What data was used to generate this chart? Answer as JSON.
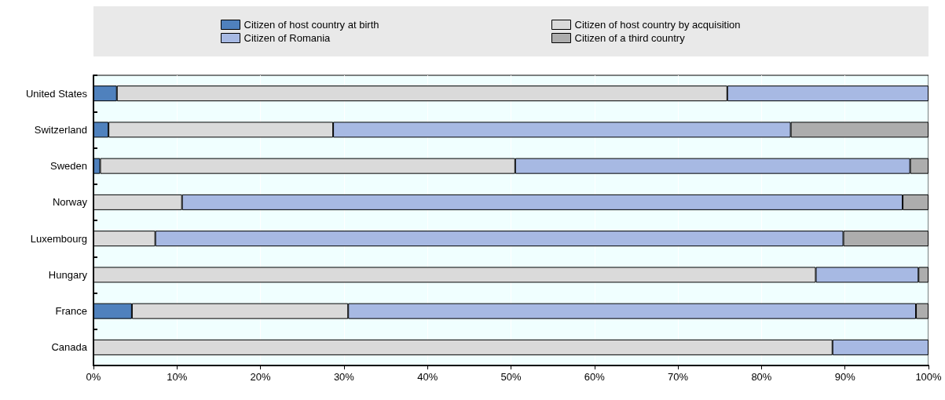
{
  "chart_data": {
    "type": "bar",
    "orientation": "horizontal",
    "stacked": true,
    "categories": [
      "United States",
      "Switzerland",
      "Sweden",
      "Norway",
      "Luxembourg",
      "Hungary",
      "France",
      "Canada"
    ],
    "series": [
      {
        "name": "Citizen of host country at birth",
        "color": "#4f81bd",
        "values": [
          2.8,
          1.8,
          0.8,
          0,
          0,
          0,
          4.6,
          0
        ]
      },
      {
        "name": "Citizen of host country by acquisition",
        "color": "#dadada",
        "values": [
          73.1,
          26.9,
          49.7,
          10.6,
          7.4,
          86.5,
          25.9,
          88.5
        ]
      },
      {
        "name": "Citizen of Romania",
        "color": "#a7b9e3",
        "values": [
          24.1,
          54.8,
          47.3,
          86.3,
          82.4,
          12.3,
          68.0,
          11.5
        ]
      },
      {
        "name": "Citizen of a third country",
        "color": "#adadad",
        "values": [
          0,
          16.5,
          2.2,
          3.1,
          10.2,
          1.2,
          1.5,
          0
        ]
      }
    ],
    "xlim": [
      0,
      100
    ],
    "xticks": [
      {
        "value": 0,
        "label": "0%"
      },
      {
        "value": 10,
        "label": "10%"
      },
      {
        "value": 20,
        "label": "20%"
      },
      {
        "value": 30,
        "label": "30%"
      },
      {
        "value": 40,
        "label": "40%"
      },
      {
        "value": 50,
        "label": "50%"
      },
      {
        "value": 60,
        "label": "60%"
      },
      {
        "value": 70,
        "label": "70%"
      },
      {
        "value": 80,
        "label": "80%"
      },
      {
        "value": 90,
        "label": "90%"
      },
      {
        "value": 100,
        "label": "100%"
      }
    ],
    "grid": "x",
    "legend": "top"
  }
}
